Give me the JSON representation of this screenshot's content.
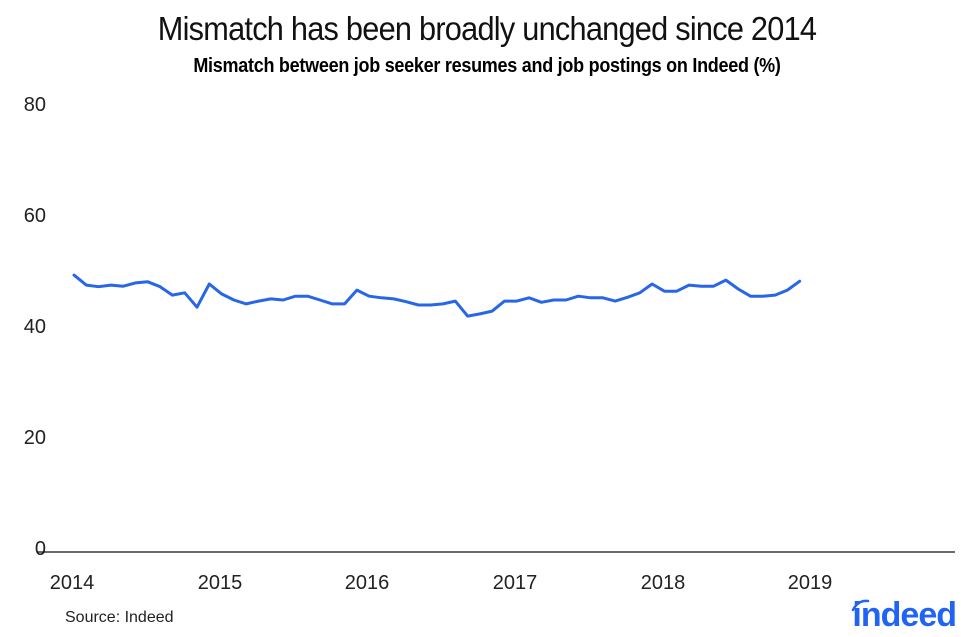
{
  "header": {
    "title": "Mismatch has been broadly unchanged since 2014",
    "subtitle": "Mismatch between job seeker resumes and job postings on Indeed (%)"
  },
  "footer": {
    "source": "Source: Indeed",
    "logo_text": "indeed"
  },
  "colors": {
    "line": "#2866e8",
    "axis": "#111111",
    "logo": "#2164f3"
  },
  "axes": {
    "y_ticks": [
      "80",
      "60",
      "40",
      "20",
      "0"
    ],
    "x_ticks": [
      "2014",
      "2015",
      "2016",
      "2017",
      "2018",
      "2019"
    ]
  },
  "chart_data": {
    "type": "line",
    "title": "Mismatch has been broadly unchanged since 2014",
    "subtitle": "Mismatch between job seeker resumes and job postings on Indeed (%)",
    "xlabel": "",
    "ylabel": "",
    "ylim": [
      0,
      80
    ],
    "y_ticks": [
      0,
      20,
      40,
      60,
      80
    ],
    "x_ticks": [
      2014,
      2015,
      2016,
      2017,
      2018,
      2019
    ],
    "grid": false,
    "legend": null,
    "source": "Source: Indeed",
    "series": [
      {
        "name": "Mismatch (%)",
        "color": "#2866e8",
        "frequency": "monthly",
        "start": "2014-01",
        "end": "2018-12",
        "values": [
          49.8,
          48.0,
          47.7,
          48.0,
          47.8,
          48.4,
          48.6,
          47.7,
          46.2,
          46.6,
          44.0,
          48.2,
          46.4,
          45.3,
          44.6,
          45.1,
          45.5,
          45.3,
          46.0,
          46.0,
          45.3,
          44.6,
          44.6,
          47.1,
          46.0,
          45.7,
          45.5,
          45.0,
          44.4,
          44.4,
          44.6,
          45.1,
          42.4,
          42.8,
          43.3,
          45.1,
          45.1,
          45.7,
          44.9,
          45.3,
          45.3,
          46.0,
          45.7,
          45.7,
          45.1,
          45.8,
          46.6,
          48.2,
          46.9,
          46.9,
          48.0,
          47.8,
          47.8,
          48.9,
          47.3,
          46.0,
          46.0,
          46.2,
          47.1,
          48.7
        ]
      }
    ]
  }
}
